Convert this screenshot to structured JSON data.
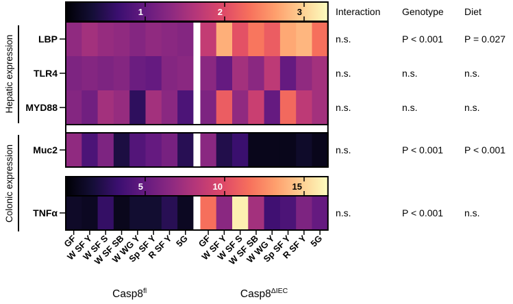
{
  "chart_data": {
    "type": "heatmap",
    "colormap": "magma",
    "columns": [
      "GF",
      "W SF Y",
      "W SF S",
      "W SF SB",
      "W WG Y",
      "Sp SF Y",
      "R SF Y",
      "5G",
      "GF",
      "W SF Y",
      "W SF S",
      "W SF SB",
      "W WG Y",
      "Sp SF Y",
      "R SF Y",
      "5G"
    ],
    "groups": [
      {
        "label_main": "Casp8",
        "label_sup": "fl"
      },
      {
        "label_main": "Casp8",
        "label_sup": "ΔIEC"
      }
    ],
    "stat_headers": [
      "Interaction",
      "Genotype",
      "Diet"
    ],
    "side_labels": [
      "Hepatic expression",
      "Colonic expression"
    ],
    "panels": [
      {
        "name": "hepatic",
        "colorbar": {
          "min": 0,
          "max": 3.3,
          "ticks": [
            1,
            2,
            3
          ]
        },
        "rows": [
          {
            "gene": "LBP",
            "values": [
              1.35,
              1.5,
              1.4,
              1.35,
              1.25,
              1.35,
              1.3,
              1.25,
              1.75,
              2.75,
              2.05,
              2.35,
              2.15,
              2.7,
              2.8,
              2.3
            ],
            "stats": [
              "n.s.",
              "P < 0.001",
              "P = 0.027"
            ]
          },
          {
            "gene": "TLR4",
            "values": [
              1.2,
              1.25,
              1.2,
              1.25,
              1.05,
              1.0,
              1.25,
              1.3,
              1.3,
              1.0,
              1.5,
              1.3,
              1.7,
              1.0,
              1.35,
              1.5
            ],
            "stats": [
              "n.s.",
              "n.s.",
              "n.s."
            ]
          },
          {
            "gene": "MYD88",
            "values": [
              1.25,
              1.1,
              1.5,
              1.4,
              0.55,
              1.5,
              1.3,
              0.8,
              1.2,
              2.15,
              1.35,
              1.8,
              1.0,
              2.25,
              1.7,
              1.5
            ],
            "stats": [
              "n.s.",
              "n.s.",
              "n.s."
            ]
          }
        ]
      },
      {
        "name": "colonic-muc2",
        "rows": [
          {
            "gene": "Muc2",
            "values": [
              1.35,
              0.8,
              1.2,
              0.4,
              0.85,
              1.0,
              1.15,
              0.5,
              1.3,
              0.45,
              0.65,
              0.15,
              0.15,
              0.15,
              0.25,
              0.15
            ],
            "stats": [
              "n.s.",
              "P < 0.001",
              "P < 0.001"
            ]
          }
        ]
      },
      {
        "name": "colonic-tnf",
        "colorbar": {
          "min": 0,
          "max": 16.5,
          "ticks": [
            5,
            10,
            15
          ]
        },
        "rows": [
          {
            "gene": "TNFα",
            "values": [
              1.2,
              1.0,
              3.0,
              0.8,
              1.5,
              1.5,
              2.5,
              1.0,
              11.5,
              6.5,
              16.0,
              7.5,
              3.5,
              4.0,
              6.0,
              5.0
            ],
            "stats": [
              "n.s.",
              "P < 0.001",
              "n.s."
            ]
          }
        ]
      }
    ]
  }
}
